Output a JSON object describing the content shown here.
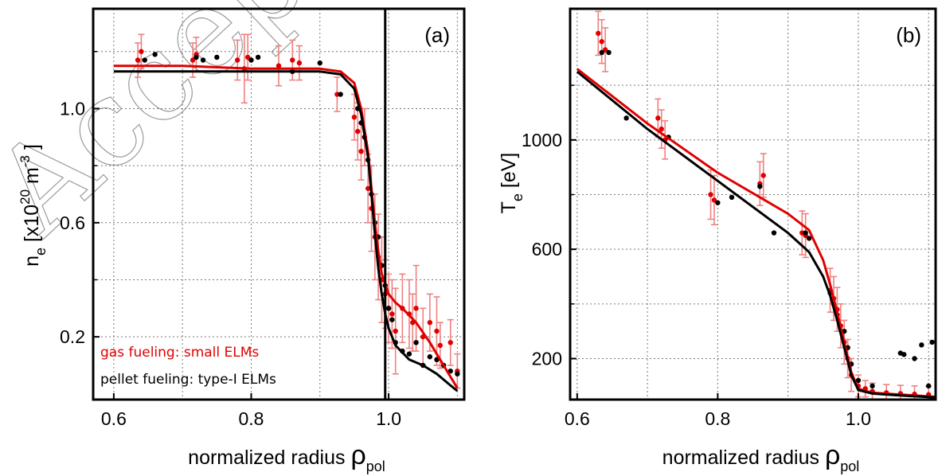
{
  "watermark": "Accepted",
  "colors": {
    "gas": "#e00000",
    "gas_err": "#f08080",
    "pellet": "#000000"
  },
  "chart_data": [
    {
      "type": "scatter",
      "panel_label": "(a)",
      "xlabel": "normalized radius",
      "xlabel_symbol": "ρ",
      "xlabel_sub": "pol",
      "ylabel": "n",
      "ylabel_sub": "e",
      "ylabel_unit": "[x10",
      "ylabel_exp": "20",
      "ylabel_unit2": "m",
      "ylabel_exp2": "-3",
      "ylabel_unit3": "]",
      "xlim": [
        0.57,
        1.11
      ],
      "ylim": [
        -0.02,
        1.35
      ],
      "xticks": [
        0.6,
        0.8,
        1.0
      ],
      "xtick_labels": [
        "0.6",
        "0.8",
        "1.0"
      ],
      "yticks": [
        0.2,
        0.6,
        1.0
      ],
      "ytick_labels": [
        "0.2",
        "0.6",
        "1.0"
      ],
      "yticks_minor": [
        0.4,
        0.8,
        1.2
      ],
      "grid": true,
      "vline_x": 0.995,
      "legend": [
        {
          "label": "gas fueling: small ELMs",
          "color": "#e00000"
        },
        {
          "label": "pellet fueling:  type-I ELMs",
          "color": "#000000"
        }
      ],
      "series": [
        {
          "name": "gas fueling: small ELMs",
          "color": "#e00000",
          "kind": "fit",
          "x": [
            0.6,
            0.7,
            0.8,
            0.9,
            0.93,
            0.95,
            0.96,
            0.97,
            0.975,
            0.98,
            0.985,
            0.99,
            1.0,
            1.01,
            1.02,
            1.04,
            1.06,
            1.08,
            1.1
          ],
          "y": [
            1.15,
            1.15,
            1.14,
            1.14,
            1.13,
            1.09,
            1.0,
            0.85,
            0.72,
            0.6,
            0.5,
            0.42,
            0.35,
            0.32,
            0.3,
            0.25,
            0.18,
            0.1,
            0.02
          ]
        },
        {
          "name": "pellet fueling:  type-I ELMs",
          "color": "#000000",
          "kind": "fit",
          "x": [
            0.6,
            0.7,
            0.8,
            0.9,
            0.93,
            0.95,
            0.96,
            0.97,
            0.975,
            0.98,
            0.985,
            0.99,
            0.995,
            1.0,
            1.01,
            1.03,
            1.05,
            1.07,
            1.09,
            1.1
          ],
          "y": [
            1.13,
            1.13,
            1.13,
            1.13,
            1.12,
            1.07,
            0.98,
            0.83,
            0.7,
            0.56,
            0.44,
            0.35,
            0.28,
            0.23,
            0.17,
            0.12,
            0.1,
            0.07,
            0.03,
            0.01
          ]
        },
        {
          "name": "gas fueling: small ELMs",
          "color": "#e00000",
          "kind": "points",
          "x": [
            0.635,
            0.64,
            0.715,
            0.72,
            0.78,
            0.79,
            0.795,
            0.84,
            0.86,
            0.87,
            0.925,
            0.95,
            0.955,
            0.96,
            0.965,
            0.97,
            0.975,
            0.98,
            0.985,
            0.99,
            0.995,
            1.0,
            1.005,
            1.01,
            1.02,
            1.03,
            1.035,
            1.04,
            1.05,
            1.06,
            1.07,
            1.075,
            1.09,
            1.1
          ],
          "y": [
            1.17,
            1.2,
            1.17,
            1.19,
            1.17,
            1.14,
            1.18,
            1.15,
            1.17,
            1.16,
            1.05,
            0.97,
            0.92,
            0.85,
            0.9,
            0.72,
            0.65,
            0.55,
            0.48,
            0.4,
            0.35,
            0.3,
            0.28,
            0.22,
            0.3,
            0.28,
            0.25,
            0.3,
            0.2,
            0.25,
            0.22,
            0.17,
            0.18,
            0.08
          ],
          "err": [
            0.06,
            0.06,
            0.06,
            0.06,
            0.07,
            0.12,
            0.08,
            0.07,
            0.07,
            0.06,
            0.06,
            0.08,
            0.1,
            0.1,
            0.1,
            0.12,
            0.15,
            0.15,
            0.15,
            0.15,
            0.12,
            0.12,
            0.12,
            0.15,
            0.12,
            0.12,
            0.1,
            0.15,
            0.1,
            0.1,
            0.12,
            0.08,
            0.08,
            0.06
          ]
        },
        {
          "name": "pellet fueling:  type-I ELMs",
          "color": "#000000",
          "kind": "points",
          "x": [
            0.645,
            0.66,
            0.72,
            0.73,
            0.75,
            0.8,
            0.81,
            0.86,
            0.9,
            0.93,
            0.955,
            0.96,
            0.965,
            0.97,
            0.975,
            0.98,
            0.985,
            0.99,
            0.995,
            1.0,
            1.005,
            1.01,
            1.02,
            1.03,
            1.04,
            1.05,
            1.06,
            1.07,
            1.08,
            1.09,
            1.1
          ],
          "y": [
            1.17,
            1.19,
            1.18,
            1.17,
            1.18,
            1.17,
            1.18,
            1.13,
            1.16,
            1.05,
            1.0,
            0.95,
            0.9,
            0.82,
            0.7,
            0.6,
            0.55,
            0.45,
            0.38,
            0.3,
            0.26,
            0.18,
            0.15,
            0.14,
            0.18,
            0.1,
            0.13,
            0.12,
            0.1,
            0.08,
            0.07
          ]
        }
      ]
    },
    {
      "type": "scatter",
      "panel_label": "(b)",
      "xlabel": "normalized radius",
      "xlabel_symbol": "ρ",
      "xlabel_sub": "pol",
      "ylabel": "T",
      "ylabel_sub": "e",
      "ylabel_unit": "[eV]",
      "xlim": [
        0.59,
        1.11
      ],
      "ylim": [
        50,
        1480
      ],
      "xticks": [
        0.6,
        0.8,
        1.0
      ],
      "xtick_labels": [
        "0.6",
        "0.8",
        "1.0"
      ],
      "yticks": [
        200,
        600,
        1000
      ],
      "ytick_labels": [
        "200",
        "600",
        "1000"
      ],
      "yticks_minor": [
        400,
        800,
        1200
      ],
      "grid": true,
      "series": [
        {
          "name": "gas fueling: small ELMs",
          "color": "#e00000",
          "kind": "fit",
          "x": [
            0.6,
            0.7,
            0.8,
            0.9,
            0.93,
            0.95,
            0.96,
            0.97,
            0.98,
            0.99,
            1.0,
            1.02,
            1.05,
            1.08,
            1.11
          ],
          "y": [
            1260,
            1060,
            880,
            730,
            670,
            560,
            470,
            370,
            260,
            150,
            90,
            75,
            70,
            65,
            60
          ]
        },
        {
          "name": "pellet fueling:  type-I ELMs",
          "color": "#000000",
          "kind": "fit",
          "x": [
            0.6,
            0.7,
            0.8,
            0.9,
            0.93,
            0.95,
            0.96,
            0.97,
            0.98,
            0.99,
            1.0,
            1.02,
            1.05,
            1.08,
            1.11
          ],
          "y": [
            1250,
            1040,
            850,
            660,
            590,
            500,
            430,
            340,
            240,
            140,
            85,
            72,
            67,
            62,
            58
          ]
        },
        {
          "name": "gas fueling: small ELMs",
          "color": "#e00000",
          "kind": "points",
          "x": [
            0.63,
            0.635,
            0.64,
            0.715,
            0.72,
            0.725,
            0.79,
            0.795,
            0.86,
            0.865,
            0.92,
            0.925,
            0.96,
            0.965,
            0.97,
            0.975,
            0.98,
            0.985,
            0.99,
            1.0,
            1.01,
            1.02,
            1.04,
            1.06,
            1.08,
            1.1
          ],
          "y": [
            1390,
            1360,
            1330,
            1080,
            1040,
            1000,
            800,
            780,
            840,
            870,
            660,
            650,
            450,
            420,
            380,
            320,
            260,
            200,
            140,
            100,
            90,
            80,
            75,
            72,
            70,
            68
          ],
          "err": [
            80,
            80,
            80,
            70,
            70,
            70,
            90,
            90,
            80,
            80,
            80,
            80,
            80,
            80,
            80,
            80,
            80,
            70,
            60,
            40,
            30,
            30,
            30,
            30,
            30,
            30
          ]
        },
        {
          "name": "pellet fueling:  type-I ELMs",
          "color": "#000000",
          "kind": "points",
          "x": [
            0.635,
            0.645,
            0.67,
            0.73,
            0.8,
            0.82,
            0.86,
            0.88,
            0.925,
            0.93,
            0.96,
            0.965,
            0.97,
            0.98,
            0.985,
            0.99,
            1.0,
            1.02,
            1.06,
            1.065,
            1.08,
            1.09,
            1.1,
            1.105
          ],
          "y": [
            1320,
            1320,
            1080,
            1010,
            770,
            790,
            830,
            660,
            660,
            640,
            440,
            400,
            360,
            300,
            240,
            180,
            120,
            100,
            220,
            215,
            200,
            250,
            100,
            260
          ]
        }
      ]
    }
  ]
}
